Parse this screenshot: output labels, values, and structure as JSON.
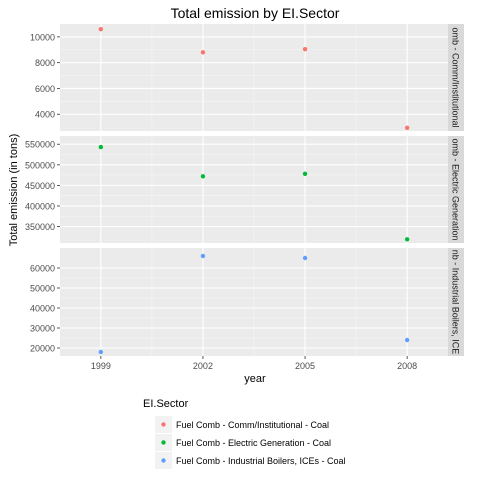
{
  "chart_data": {
    "type": "scatter",
    "title": "Total emission by EI.Sector",
    "xlabel": "year",
    "ylabel": "Total emission (in tons)",
    "x_ticks": [
      1999,
      2002,
      2005,
      2008
    ],
    "legend": {
      "title": "EI.Sector",
      "placement": "bottom-left"
    },
    "facets": [
      {
        "strip_label": "omb - Comm/Institutional",
        "series_name": "Fuel Comb - Comm/Institutional - Coal",
        "color": "#F8766D",
        "ylim": [
          2700,
          11000
        ],
        "y_ticks": [
          4000,
          6000,
          8000,
          10000
        ],
        "y_tick_labels": [
          "4000",
          "6000",
          "8000",
          "10000"
        ],
        "points": [
          {
            "x": 1999,
            "y": 10600
          },
          {
            "x": 2002,
            "y": 8800
          },
          {
            "x": 2005,
            "y": 9050
          },
          {
            "x": 2008,
            "y": 2950
          }
        ]
      },
      {
        "strip_label": "omb - Electric Generation",
        "series_name": "Fuel Comb - Electric Generation - Coal",
        "color": "#00BA38",
        "ylim": [
          310000,
          570000
        ],
        "y_ticks": [
          350000,
          400000,
          450000,
          500000,
          550000
        ],
        "y_tick_labels": [
          "350000",
          "400000",
          "450000",
          "500000",
          "550000"
        ],
        "points": [
          {
            "x": 1999,
            "y": 543000
          },
          {
            "x": 2002,
            "y": 472000
          },
          {
            "x": 2005,
            "y": 478000
          },
          {
            "x": 2008,
            "y": 319000
          }
        ]
      },
      {
        "strip_label": "nb - Industrial Boilers, ICE",
        "series_name": "Fuel Comb - Industrial Boilers, ICEs - Coal",
        "color": "#619CFF",
        "ylim": [
          16000,
          70000
        ],
        "y_ticks": [
          20000,
          30000,
          40000,
          50000,
          60000
        ],
        "y_tick_labels": [
          "20000",
          "30000",
          "40000",
          "50000",
          "60000"
        ],
        "points": [
          {
            "x": 1999,
            "y": 18000
          },
          {
            "x": 2002,
            "y": 66000
          },
          {
            "x": 2005,
            "y": 65000
          },
          {
            "x": 2008,
            "y": 24000
          }
        ]
      }
    ]
  }
}
